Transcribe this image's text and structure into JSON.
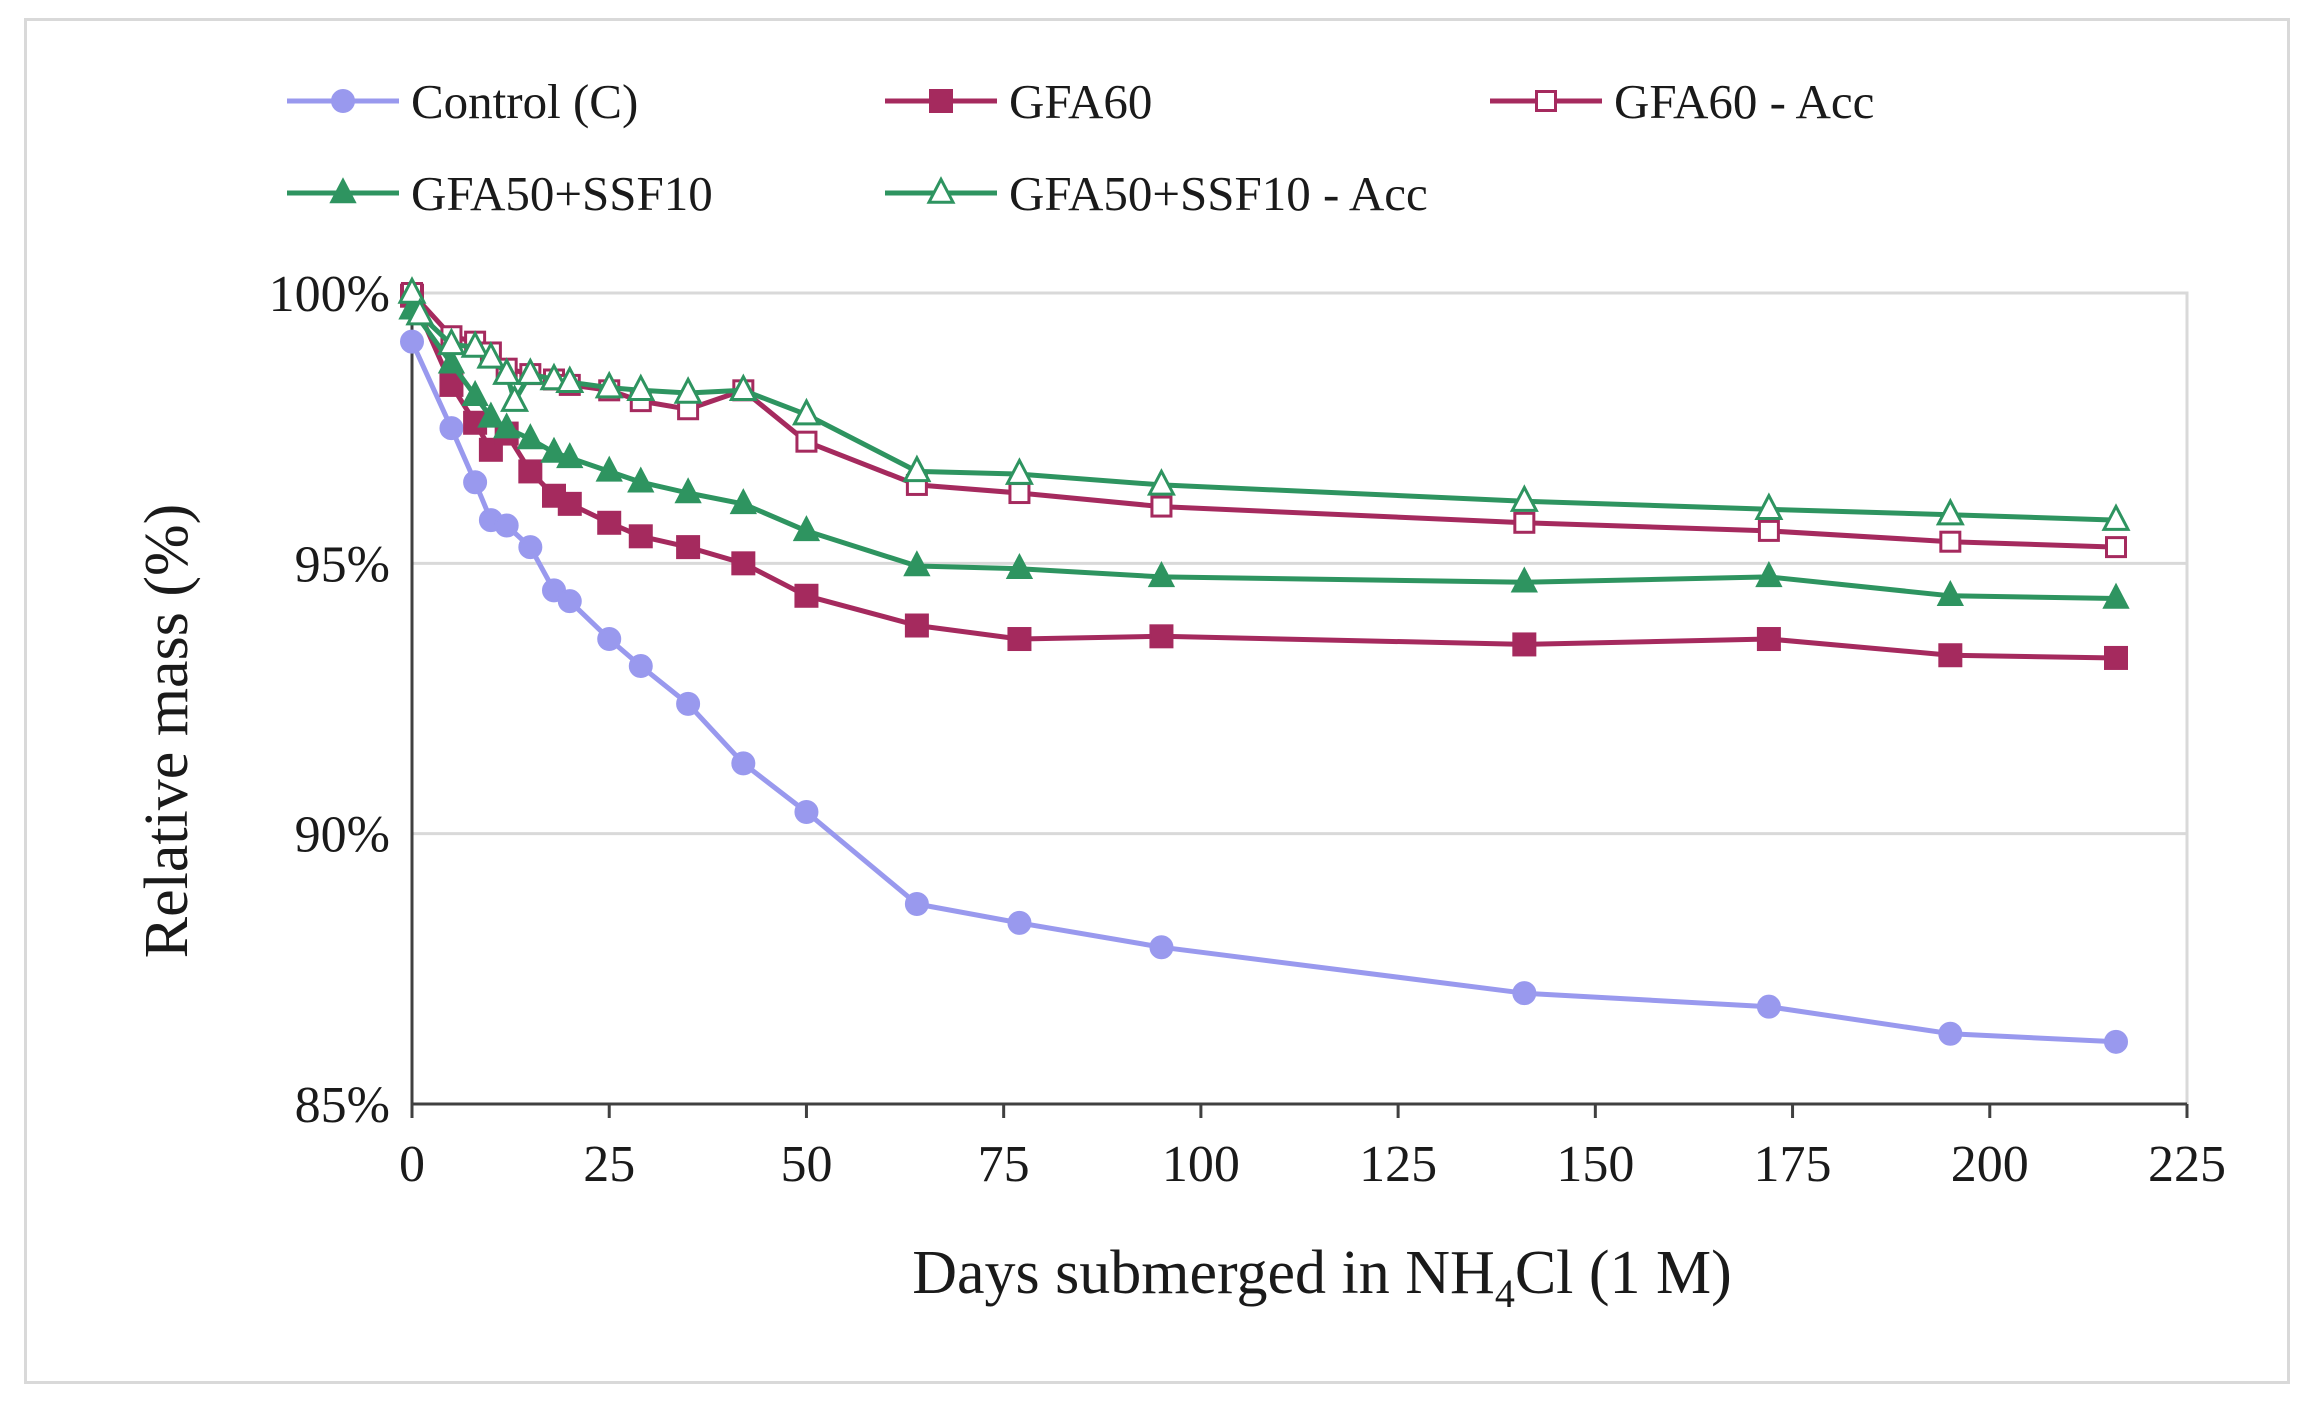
{
  "chart_data": {
    "type": "line",
    "title": "",
    "xlabel": {
      "prefix": "Days submerged in NH",
      "subscript": "4",
      "suffix": "Cl (1 M)"
    },
    "ylabel": "Relative mass (%)",
    "xlim": [
      0,
      225
    ],
    "ylim": [
      85,
      100
    ],
    "xticks": [
      0,
      25,
      50,
      75,
      100,
      125,
      150,
      175,
      200,
      225
    ],
    "xtick_labels": [
      "0",
      "25",
      "50",
      "75",
      "100",
      "125",
      "150",
      "175",
      "200",
      "225"
    ],
    "yticks": [
      85,
      90,
      95,
      100
    ],
    "ytick_labels": [
      "85%",
      "90%",
      "95%",
      "100%"
    ],
    "grid": "horizontal",
    "legend_position": "top",
    "series": [
      {
        "name": "Control (C)",
        "color": "#9999ee",
        "marker": "circle",
        "filled": true,
        "x": [
          0,
          5,
          8,
          10,
          12,
          15,
          18,
          20,
          25,
          29,
          35,
          42,
          50,
          64,
          77,
          95,
          141,
          172,
          195,
          216
        ],
        "y": [
          99.1,
          97.5,
          96.5,
          95.8,
          95.7,
          95.3,
          94.5,
          94.3,
          93.6,
          93.1,
          92.4,
          91.3,
          90.4,
          88.7,
          88.35,
          87.9,
          87.05,
          86.8,
          86.3,
          86.15
        ]
      },
      {
        "name": "GFA60",
        "color": "#a52a5e",
        "marker": "square",
        "filled": true,
        "x": [
          0,
          5,
          8,
          10,
          12,
          15,
          18,
          20,
          25,
          29,
          35,
          42,
          50,
          64,
          77,
          95,
          141,
          172,
          195,
          216
        ],
        "y": [
          99.95,
          98.3,
          97.6,
          97.1,
          97.4,
          96.7,
          96.25,
          96.1,
          95.75,
          95.5,
          95.3,
          95.0,
          94.4,
          93.85,
          93.6,
          93.65,
          93.5,
          93.6,
          93.3,
          93.25
        ]
      },
      {
        "name": "GFA60 - Acc",
        "color": "#a52a5e",
        "marker": "square",
        "filled": false,
        "x": [
          0,
          5,
          8,
          10,
          12,
          15,
          18,
          20,
          25,
          29,
          35,
          42,
          50,
          64,
          77,
          95,
          141,
          172,
          195,
          216
        ],
        "y": [
          100.0,
          99.2,
          99.1,
          98.9,
          98.6,
          98.5,
          98.4,
          98.3,
          98.2,
          98.0,
          97.85,
          98.2,
          97.25,
          96.45,
          96.3,
          96.05,
          95.75,
          95.6,
          95.4,
          95.3
        ]
      },
      {
        "name": "GFA50+SSF10",
        "color": "#2e9460",
        "marker": "triangle",
        "filled": true,
        "x": [
          0,
          5,
          8,
          10,
          12,
          15,
          18,
          20,
          25,
          29,
          35,
          42,
          50,
          64,
          77,
          95,
          141,
          172,
          195,
          216
        ],
        "y": [
          99.7,
          98.7,
          98.1,
          97.7,
          97.5,
          97.3,
          97.05,
          96.95,
          96.7,
          96.5,
          96.3,
          96.1,
          95.6,
          94.95,
          94.9,
          94.75,
          94.65,
          94.75,
          94.4,
          94.35
        ]
      },
      {
        "name": "GFA50+SSF10 - Acc",
        "color": "#2e9460",
        "marker": "triangle",
        "filled": false,
        "x": [
          0,
          1,
          5,
          8,
          10,
          12,
          13,
          15,
          18,
          20,
          25,
          29,
          35,
          42,
          50,
          64,
          77,
          95,
          141,
          172,
          195,
          216
        ],
        "y": [
          100.0,
          99.6,
          99.05,
          99.0,
          98.8,
          98.5,
          98.0,
          98.5,
          98.4,
          98.35,
          98.25,
          98.2,
          98.15,
          98.2,
          97.75,
          96.7,
          96.65,
          96.45,
          96.15,
          96.0,
          95.9,
          95.8
        ]
      }
    ]
  }
}
